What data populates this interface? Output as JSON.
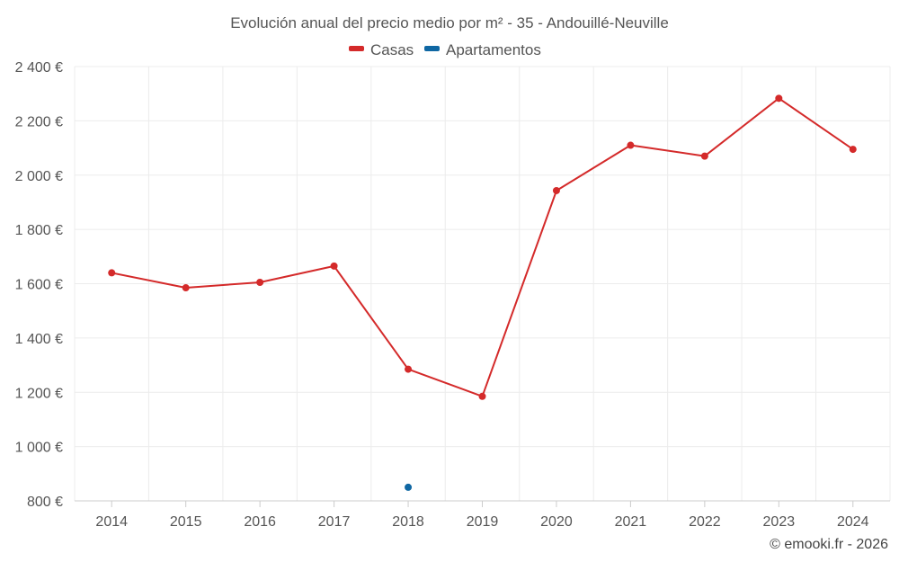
{
  "chart_data": {
    "type": "line",
    "title": "Evolución anual del precio medio por m² - 35 - Andouillé-Neuville",
    "categories": [
      "2014",
      "2015",
      "2016",
      "2017",
      "2018",
      "2019",
      "2020",
      "2021",
      "2022",
      "2023",
      "2024"
    ],
    "series": [
      {
        "name": "Casas",
        "color": "#d42a2a",
        "values": [
          1640,
          1585,
          1605,
          1665,
          1285,
          1185,
          1943,
          2110,
          2070,
          2283,
          2095
        ]
      },
      {
        "name": "Apartamentos",
        "color": "#0f67a3",
        "values": [
          null,
          null,
          null,
          null,
          850,
          null,
          null,
          null,
          null,
          null,
          null
        ]
      }
    ],
    "ylim": [
      800,
      2400
    ],
    "yticks": [
      {
        "value": 800,
        "label": "800 €"
      },
      {
        "value": 1000,
        "label": "1 000 €"
      },
      {
        "value": 1200,
        "label": "1 200 €"
      },
      {
        "value": 1400,
        "label": "1 400 €"
      },
      {
        "value": 1600,
        "label": "1 600 €"
      },
      {
        "value": 1800,
        "label": "1 800 €"
      },
      {
        "value": 2000,
        "label": "2 000 €"
      },
      {
        "value": 2200,
        "label": "2 200 €"
      },
      {
        "value": 2400,
        "label": "2 400 €"
      }
    ],
    "grid": true,
    "legend": "top-center"
  },
  "credit": "© emooki.fr - 2026"
}
